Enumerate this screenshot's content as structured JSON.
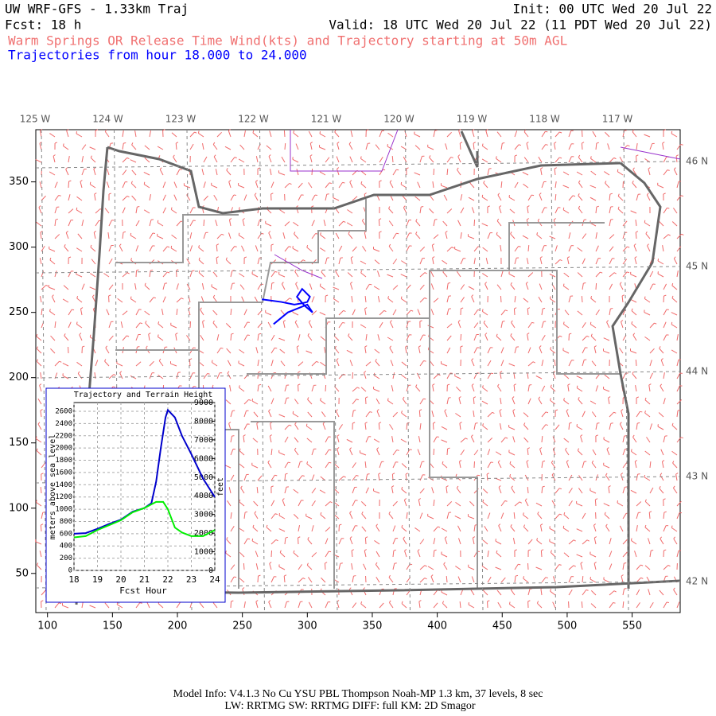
{
  "header": {
    "title": "UW WRF-GFS - 1.33km Traj",
    "init": "Init: 00 UTC Wed 20 Jul 22",
    "forecast": "Fcst:    18 h",
    "valid": "Valid: 18 UTC Wed 20 Jul 22 (11 PDT Wed 20 Jul 22)",
    "description": "Warm Springs OR Release Time Wind(kts) and Trajectory starting at 50m AGL",
    "trajectory_range": "Trajectories from hour  18.000 to  24.000"
  },
  "map": {
    "xlim": [
      91,
      587
    ],
    "ylim": [
      20,
      390
    ],
    "xticks": [
      100,
      150,
      200,
      250,
      300,
      350,
      400,
      450,
      500,
      550
    ],
    "yticks": [
      50,
      100,
      150,
      200,
      250,
      300,
      350
    ],
    "lon_labels": [
      "125 W",
      "124 W",
      "123 W",
      "122 W",
      "121 W",
      "120 W",
      "119 W",
      "118 W",
      "117 W"
    ],
    "lat_labels": [
      "46 N",
      "45 N",
      "44 N",
      "43 N",
      "42 N"
    ],
    "trajectory": {
      "x": [
        265,
        280,
        290,
        296,
        300,
        302,
        296,
        292,
        298,
        304,
        300,
        285,
        274
      ],
      "y": [
        260,
        258,
        256,
        257,
        258,
        262,
        268,
        262,
        255,
        250,
        256,
        250,
        241
      ],
      "color": "#0000ff"
    }
  },
  "inset_chart": {
    "type": "line",
    "title": "Trajectory and Terrain Height",
    "xlabel": "Fcst Hour",
    "ylabel": "meters above sea level",
    "y2label": "feet",
    "xlim": [
      18,
      24
    ],
    "xticks": [
      18,
      19,
      20,
      21,
      22,
      23,
      24
    ],
    "ylim": [
      0,
      2743
    ],
    "yticks": [
      0,
      200,
      400,
      600,
      800,
      1000,
      1200,
      1400,
      1600,
      1800,
      2000,
      2200,
      2400,
      2600
    ],
    "y2lim": [
      0,
      9000
    ],
    "y2ticks": [
      0,
      1000,
      2000,
      3000,
      4000,
      5000,
      6000,
      7000,
      8000,
      9000
    ],
    "series": [
      {
        "name": "trajectory",
        "color": "#0000cc",
        "x": [
          18,
          18.5,
          19,
          19.5,
          20,
          20.5,
          21,
          21.3,
          21.5,
          21.7,
          21.9,
          22,
          22.3,
          22.6,
          23,
          23.5,
          24
        ],
        "values": [
          600,
          610,
          680,
          760,
          830,
          960,
          1020,
          1100,
          1450,
          2000,
          2500,
          2620,
          2500,
          2200,
          1900,
          1500,
          1200
        ]
      },
      {
        "name": "terrain",
        "color": "#00ee00",
        "x": [
          18,
          18.5,
          19,
          19.5,
          20,
          20.5,
          21,
          21.5,
          21.8,
          22,
          22.3,
          22.6,
          23,
          23.5,
          24
        ],
        "values": [
          540,
          560,
          660,
          740,
          820,
          950,
          1020,
          1120,
          1120,
          1000,
          700,
          620,
          560,
          560,
          660
        ]
      }
    ]
  },
  "footer": {
    "line1": "Model Info: V4.1.3    No Cu    YSU PBL   Thompson     Noah-MP    1.3 km,  37 levels,     8 sec",
    "line2": "LW: RRTMG SW: RRTMG    DIFF: full    KM: 2D Smagor"
  }
}
